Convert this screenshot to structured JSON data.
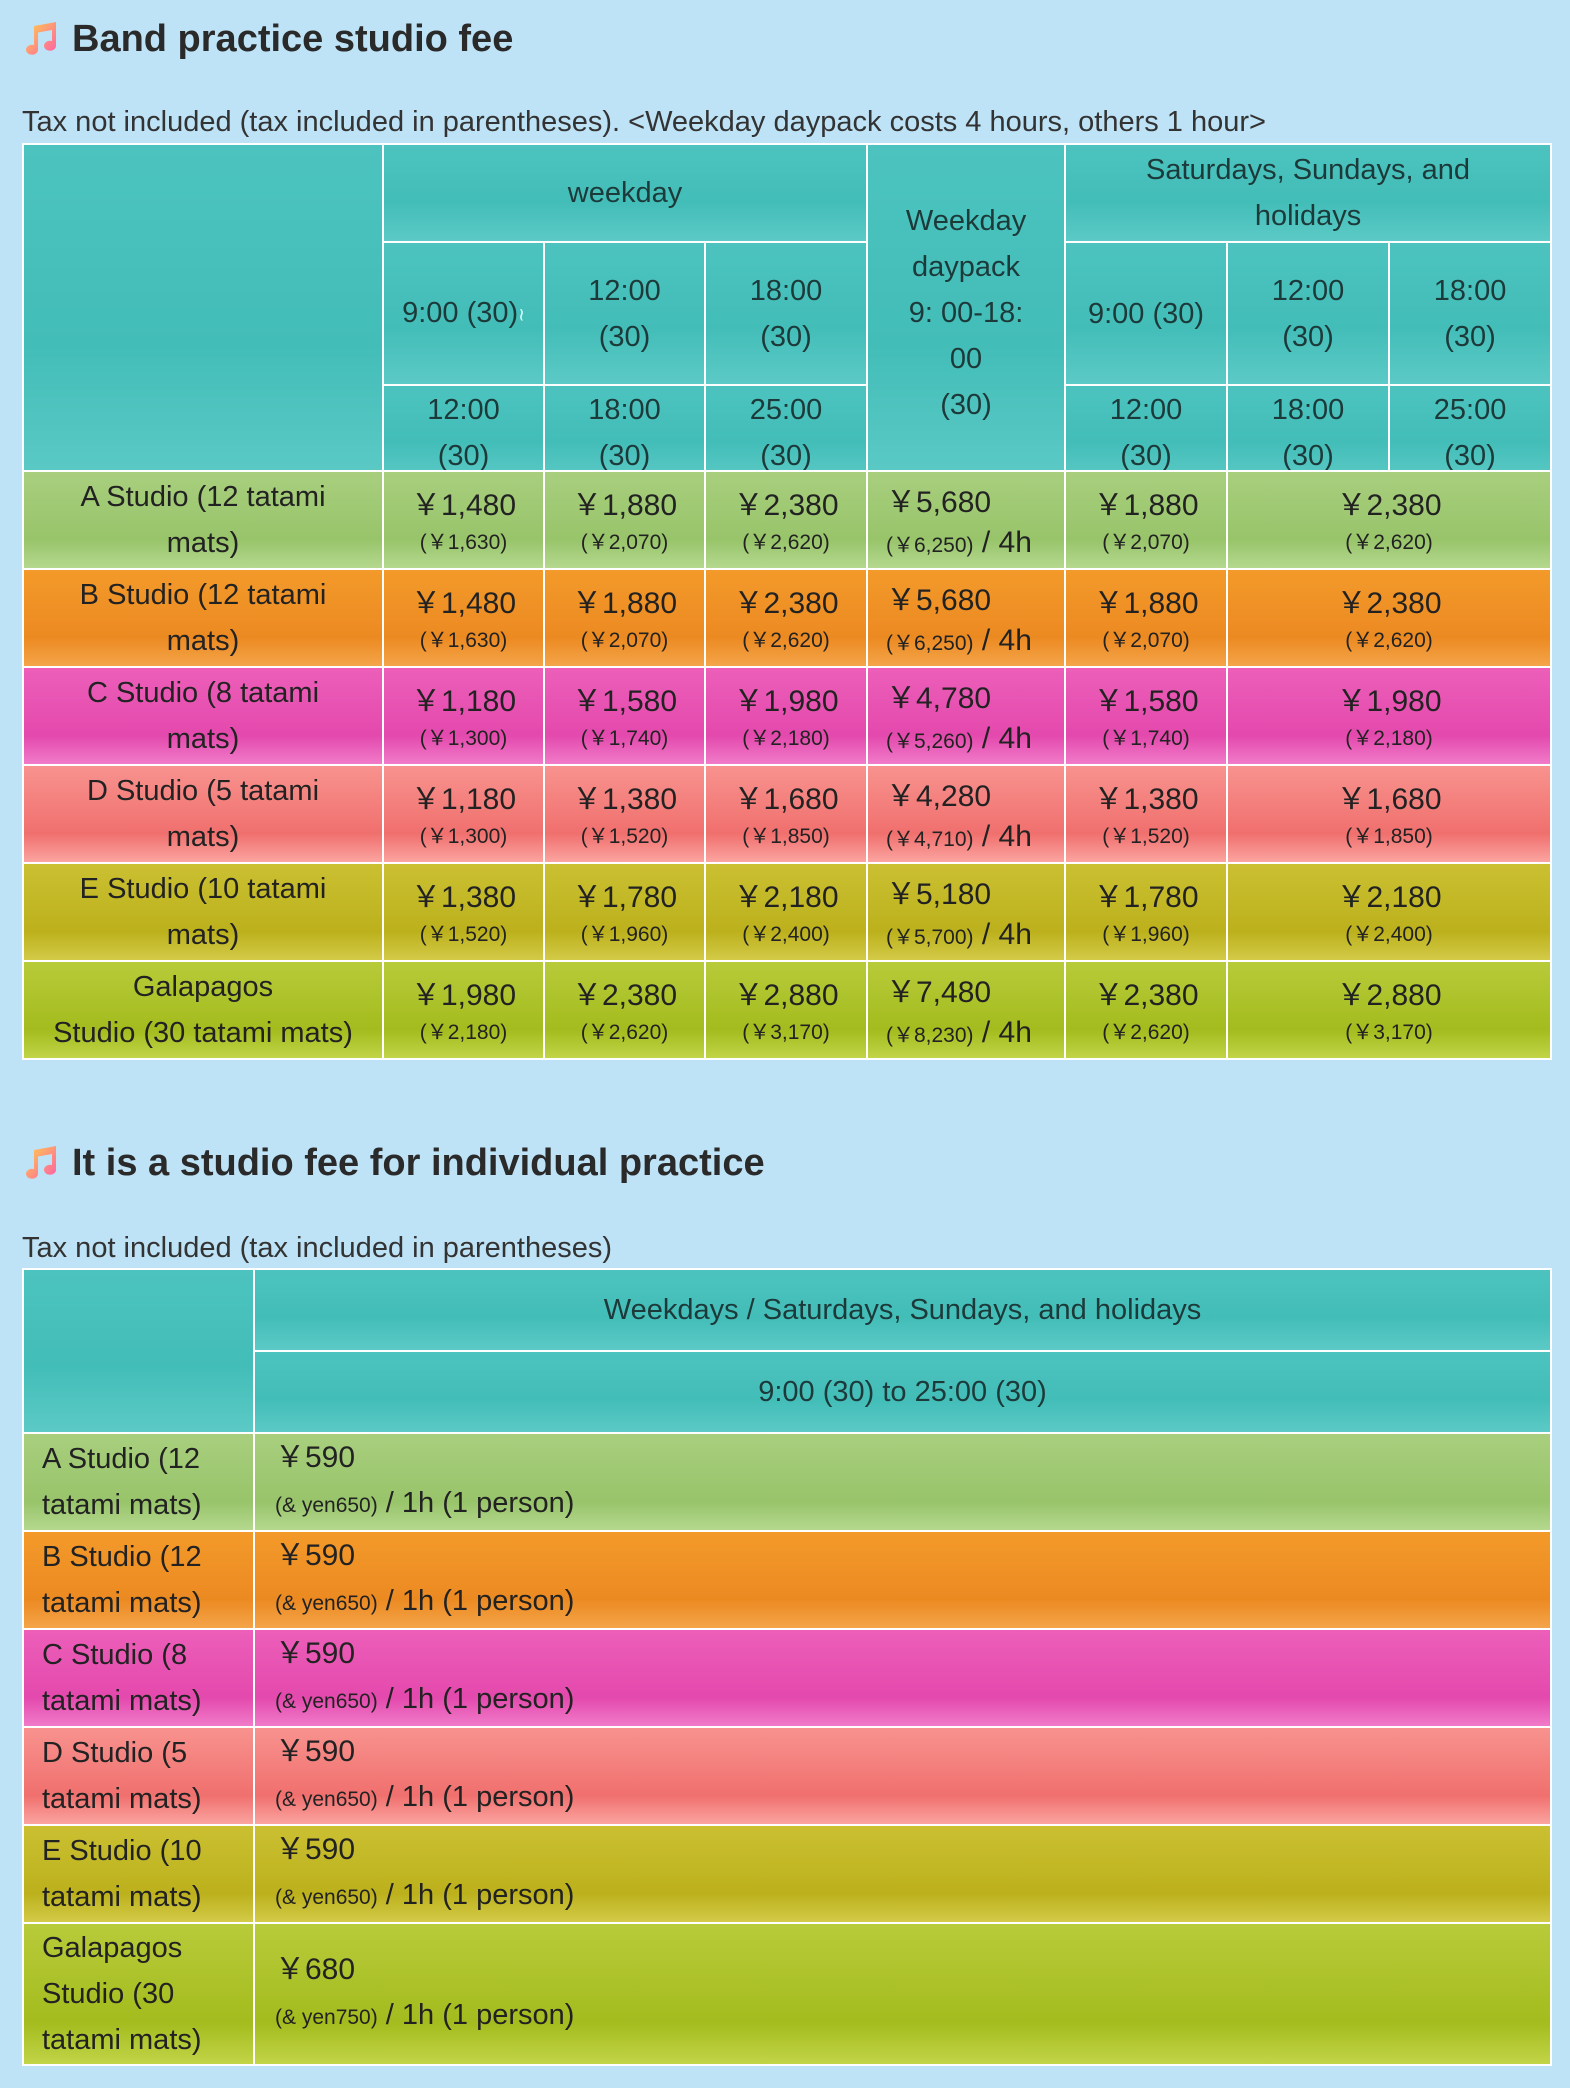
{
  "band": {
    "title": "Band practice studio fee",
    "caption": "Tax not included (tax included in parentheses). <Weekday daypack costs 4 hours, others 1 hour>",
    "header": {
      "weekday": "weekday",
      "daypack_lines": [
        "Weekday",
        "daypack",
        "9: 00-18:",
        "00",
        "(30)"
      ],
      "weekend_lines": [
        "Saturdays, Sundays, and",
        "holidays"
      ],
      "slot1_top": "9:00 (30)",
      "slot1_bottom": [
        "12:00",
        "(30)"
      ],
      "slot2_top": [
        "12:00",
        "(30)"
      ],
      "slot2_bottom": [
        "18:00",
        "(30)"
      ],
      "slot3_top": [
        "18:00",
        "(30)"
      ],
      "slot3_bottom": [
        "25:00",
        "(30)"
      ],
      "tilde": "≀"
    },
    "per_4h": " / 4h",
    "rows": [
      {
        "name": [
          "A Studio (12 tatami",
          "mats)"
        ],
        "w1": [
          "￥1,480",
          "(￥1,630)"
        ],
        "w2": [
          "￥1,880",
          "(￥2,070)"
        ],
        "w3": [
          "￥2,380",
          "(￥2,620)"
        ],
        "dp": [
          "￥5,680",
          "(￥6,250)"
        ],
        "h1": [
          "￥1,880",
          "(￥2,070)"
        ],
        "h23": [
          "￥2,380",
          "(￥2,620)"
        ]
      },
      {
        "name": [
          "B Studio (12 tatami",
          "mats)"
        ],
        "w1": [
          "￥1,480",
          "(￥1,630)"
        ],
        "w2": [
          "￥1,880",
          "(￥2,070)"
        ],
        "w3": [
          "￥2,380",
          "(￥2,620)"
        ],
        "dp": [
          "￥5,680",
          "(￥6,250)"
        ],
        "h1": [
          "￥1,880",
          "(￥2,070)"
        ],
        "h23": [
          "￥2,380",
          "(￥2,620)"
        ]
      },
      {
        "name": [
          "C Studio (8 tatami",
          "mats)"
        ],
        "w1": [
          "￥1,180",
          "(￥1,300)"
        ],
        "w2": [
          "￥1,580",
          "(￥1,740)"
        ],
        "w3": [
          "￥1,980",
          "(￥2,180)"
        ],
        "dp": [
          "￥4,780",
          "(￥5,260)"
        ],
        "h1": [
          "￥1,580",
          "(￥1,740)"
        ],
        "h23": [
          "￥1,980",
          "(￥2,180)"
        ]
      },
      {
        "name": [
          "D Studio (5 tatami",
          "mats)"
        ],
        "w1": [
          "￥1,180",
          "(￥1,300)"
        ],
        "w2": [
          "￥1,380",
          "(￥1,520)"
        ],
        "w3": [
          "￥1,680",
          "(￥1,850)"
        ],
        "dp": [
          "￥4,280",
          "(￥4,710)"
        ],
        "h1": [
          "￥1,380",
          "(￥1,520)"
        ],
        "h23": [
          "￥1,680",
          "(￥1,850)"
        ]
      },
      {
        "name": [
          "E Studio (10 tatami",
          "mats)"
        ],
        "w1": [
          "￥1,380",
          "(￥1,520)"
        ],
        "w2": [
          "￥1,780",
          "(￥1,960)"
        ],
        "w3": [
          "￥2,180",
          "(￥2,400)"
        ],
        "dp": [
          "￥5,180",
          "(￥5,700)"
        ],
        "h1": [
          "￥1,780",
          "(￥1,960)"
        ],
        "h23": [
          "￥2,180",
          "(￥2,400)"
        ]
      },
      {
        "name": [
          "Galapagos",
          "Studio (30 tatami mats)"
        ],
        "w1": [
          "￥1,980",
          "(￥2,180)"
        ],
        "w2": [
          "￥2,380",
          "(￥2,620)"
        ],
        "w3": [
          "￥2,880",
          "(￥3,170)"
        ],
        "dp": [
          "￥7,480",
          "(￥8,230)"
        ],
        "h1": [
          "￥2,380",
          "(￥2,620)"
        ],
        "h23": [
          "￥2,880",
          "(￥3,170)"
        ]
      }
    ]
  },
  "individual": {
    "title": "It is a studio fee for individual practice",
    "caption": "Tax not included (tax included in parentheses)",
    "header_days": "Weekdays / Saturdays, Sundays, and holidays",
    "header_hours": "9:00 (30) to 25:00 (30)",
    "per_person": " / 1h (1 person)",
    "rows": [
      {
        "name": [
          "A Studio (12",
          "tatami mats)"
        ],
        "price": "￥590",
        "tax": "(& yen650)"
      },
      {
        "name": [
          "B Studio (12",
          "tatami mats)"
        ],
        "price": "￥590",
        "tax": "(& yen650)"
      },
      {
        "name": [
          "C Studio (8",
          "tatami mats)"
        ],
        "price": "￥590",
        "tax": "(& yen650)"
      },
      {
        "name": [
          "D Studio (5",
          "tatami mats)"
        ],
        "price": "￥590",
        "tax": "(& yen650)"
      },
      {
        "name": [
          "E Studio (10",
          "tatami mats)"
        ],
        "price": "￥590",
        "tax": "(& yen650)"
      },
      {
        "name": [
          "Galapagos",
          "Studio (30",
          "tatami mats)"
        ],
        "price": "￥680",
        "tax": "(& yen750)"
      }
    ]
  },
  "colors": {
    "background": "#bee3f6",
    "header": "#4cc3bf",
    "studio_a": "#a9cf7e",
    "studio_b": "#f39a2a",
    "studio_c": "#ec5fb9",
    "studio_d": "#f8938f",
    "studio_e": "#cbc032",
    "galapagos": "#b8cb3a"
  },
  "icons": {
    "section_icon": "music-note-icon"
  }
}
